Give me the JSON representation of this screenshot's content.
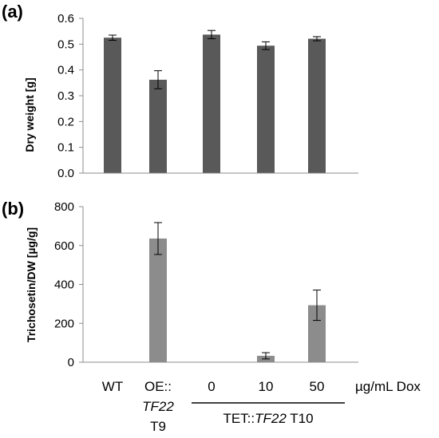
{
  "chart_data": [
    {
      "type": "bar",
      "panel_label": "(a)",
      "ylabel": "Dry weight [g]",
      "ylim": [
        0,
        0.6
      ],
      "yticks": [
        "0.0",
        "0.1",
        "0.2",
        "0.3",
        "0.4",
        "0.5",
        "0.6"
      ],
      "color": "#595959",
      "values": [
        0.525,
        0.362,
        0.537,
        0.494,
        0.521
      ],
      "errors": [
        0.01,
        0.035,
        0.016,
        0.015,
        0.008
      ]
    },
    {
      "type": "bar",
      "panel_label": "(b)",
      "ylabel": "Trichosetin/DW [µg/g]",
      "ylim": [
        0,
        800
      ],
      "yticks": [
        "0",
        "200",
        "400",
        "600",
        "800"
      ],
      "color": "#8c8c8c",
      "values": [
        0,
        636,
        0,
        33,
        293
      ],
      "errors": [
        0,
        82,
        0,
        16,
        78
      ]
    }
  ],
  "x_categories": [
    {
      "lines": [
        "WT"
      ],
      "italic": [
        false
      ]
    },
    {
      "lines": [
        "OE::",
        "TF22",
        "T9"
      ],
      "italic": [
        false,
        true,
        false
      ]
    },
    {
      "lines": [
        "0"
      ],
      "italic": [
        false
      ]
    },
    {
      "lines": [
        "10"
      ],
      "italic": [
        false
      ]
    },
    {
      "lines": [
        "50"
      ],
      "italic": [
        false
      ]
    }
  ],
  "dose_unit_label": "µg/mL Dox",
  "group_label": {
    "prefix": "TET::",
    "gene": "TF22",
    "suffix": " T10"
  }
}
